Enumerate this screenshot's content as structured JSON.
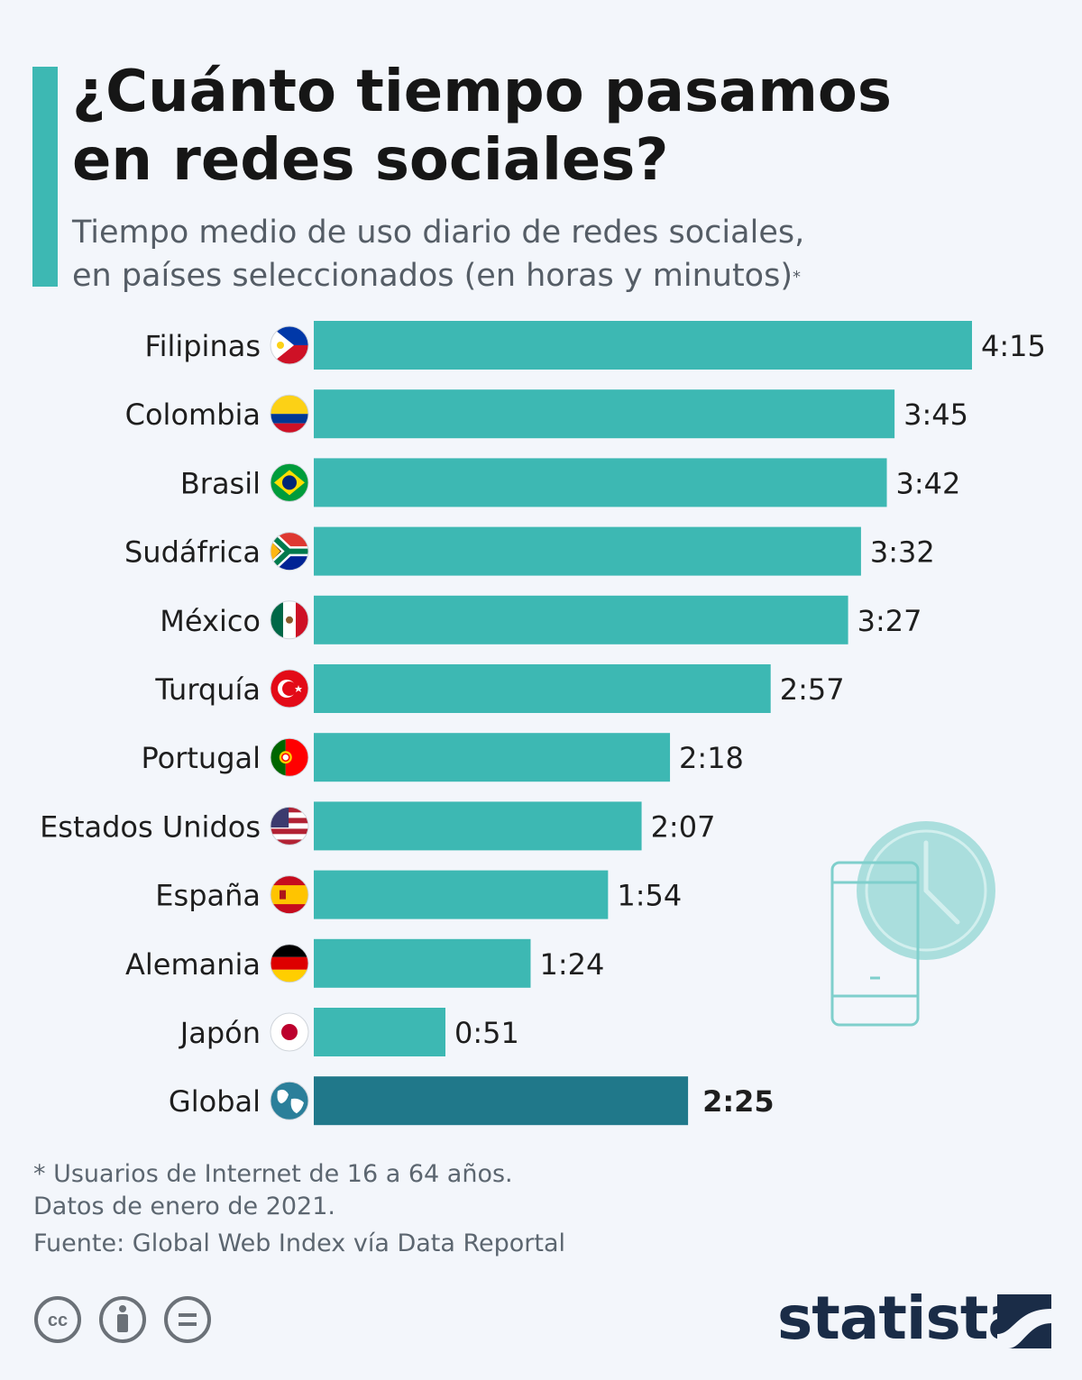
{
  "header": {
    "title_line1": "¿Cuánto tiempo pasamos",
    "title_line2": "en redes sociales?",
    "subtitle_line1": "Tiempo medio de uso diario de redes sociales,",
    "subtitle_line2": "en países seleccionados (en horas y minutos)",
    "subtitle_mark": "*"
  },
  "colors": {
    "bar": "#3db8b3",
    "bar_highlight": "#20788a",
    "accent": "#3db8b3",
    "brand_dark": "#1a2c47"
  },
  "chart_data": {
    "type": "bar",
    "orientation": "horizontal",
    "unit": "hours:minutes",
    "categories": [
      "Filipinas",
      "Colombia",
      "Brasil",
      "Sudáfrica",
      "México",
      "Turquía",
      "Portugal",
      "Estados Unidos",
      "España",
      "Alemania",
      "Japón",
      "Global"
    ],
    "labels": [
      "4:15",
      "3:45",
      "3:42",
      "3:32",
      "3:27",
      "2:57",
      "2:18",
      "2:07",
      "1:54",
      "1:24",
      "0:51",
      "2:25"
    ],
    "values_minutes": [
      255,
      225,
      222,
      212,
      207,
      177,
      138,
      127,
      114,
      84,
      51,
      145
    ],
    "flags": [
      "flag-philippines",
      "flag-colombia",
      "flag-brazil",
      "flag-south-africa",
      "flag-mexico",
      "flag-turkey",
      "flag-portugal",
      "flag-usa",
      "flag-spain",
      "flag-germany",
      "flag-japan",
      "globe"
    ],
    "highlight": "Global",
    "xlim": [
      0,
      255
    ],
    "grid": false,
    "legend": "none"
  },
  "footer": {
    "note1": "* Usuarios de Internet de 16 a 64 años.",
    "note2": "Datos de enero de 2021.",
    "source": "Fuente: Global Web Index vía Data Reportal",
    "brand": "statista",
    "license_icons": [
      "cc-icon",
      "attribution-icon",
      "no-derivatives-icon"
    ]
  }
}
